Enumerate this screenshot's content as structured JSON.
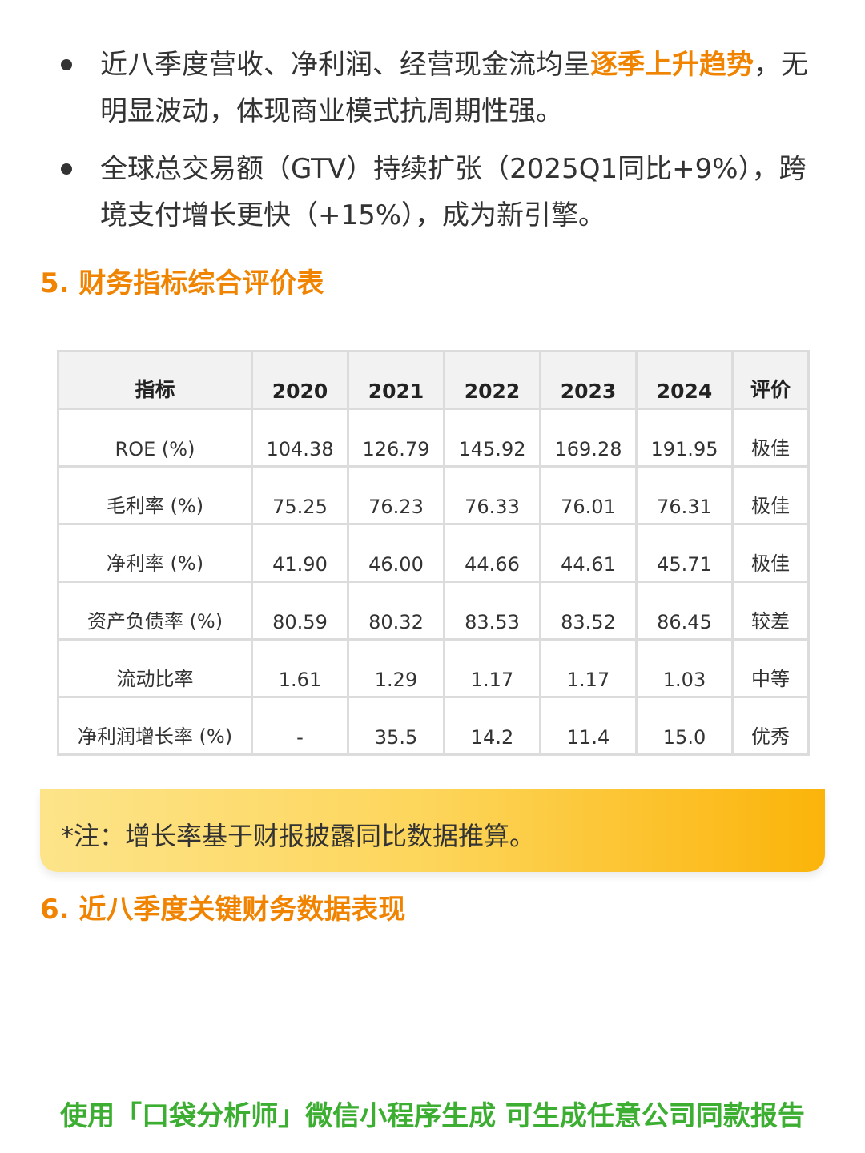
{
  "bullets": [
    {
      "before": "近八季度营收、净利润、经营现金流均呈",
      "highlight": "逐季上升趋势",
      "after": "，无明显波动，体现商业模式抗周期性强。"
    },
    {
      "text": "全球总交易额（GTV）持续扩张（2025Q1同比+9%），跨境支付增长更快（+15%），成为新引擎。"
    }
  ],
  "section5": {
    "title": "5. 财务指标综合评价表"
  },
  "table": {
    "headers": [
      "指标",
      "2020",
      "2021",
      "2022",
      "2023",
      "2024",
      "评价"
    ],
    "rows": [
      [
        "ROE (%)",
        "104.38",
        "126.79",
        "145.92",
        "169.28",
        "191.95",
        "极佳"
      ],
      [
        "毛利率 (%)",
        "75.25",
        "76.23",
        "76.33",
        "76.01",
        "76.31",
        "极佳"
      ],
      [
        "净利率 (%)",
        "41.90",
        "46.00",
        "44.66",
        "44.61",
        "45.71",
        "极佳"
      ],
      [
        "资产负债率 (%)",
        "80.59",
        "80.32",
        "83.53",
        "83.52",
        "86.45",
        "较差"
      ],
      [
        "流动比率",
        "1.61",
        "1.29",
        "1.17",
        "1.17",
        "1.03",
        "中等"
      ],
      [
        "净利润增长率 (%)",
        "-",
        "35.5",
        "14.2",
        "11.4",
        "15.0",
        "优秀"
      ]
    ]
  },
  "note": {
    "text": "*注：增长率基于财报披露同比数据推算。"
  },
  "section6": {
    "title": "6. 近八季度关键财务数据表现"
  },
  "footer": {
    "text": "使用「口袋分析师」微信小程序生成 可生成任意公司同款报告"
  },
  "colors": {
    "accent": "#f08300",
    "footer_green": "#3cae32",
    "note_start": "#fde48a",
    "note_end": "#fbb40a"
  }
}
